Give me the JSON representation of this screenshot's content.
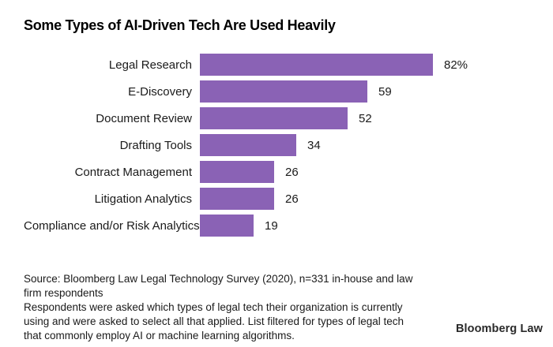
{
  "chart_data": {
    "type": "bar",
    "orientation": "horizontal",
    "title": "Some Types of AI-Driven Tech Are Used Heavily",
    "categories": [
      "Legal Research",
      "E-Discovery",
      "Document Review",
      "Drafting Tools",
      "Contract Management",
      "Litigation Analytics",
      "Compliance and/or Risk Analytics"
    ],
    "values": [
      82,
      59,
      52,
      34,
      26,
      26,
      19
    ],
    "value_labels": [
      "82%",
      "59",
      "52",
      "34",
      "26",
      "26",
      "19"
    ],
    "unit": "percent",
    "xlim": [
      0,
      82
    ],
    "grid": "off",
    "legend": "none",
    "bar_color": "#8a62b5"
  },
  "footnote": {
    "source_lines": [
      "Source: Bloomberg Law Legal Technology Survey (2020), n=331 in-house and law",
      "firm respondents"
    ],
    "note_lines": [
      "Respondents were asked which types of legal tech their organization is currently",
      "using and were asked to select all that applied. List filtered for types of legal tech",
      "that commonly employ AI or machine learning algorithms."
    ]
  },
  "branding": {
    "logo_text": "Bloomberg Law"
  }
}
